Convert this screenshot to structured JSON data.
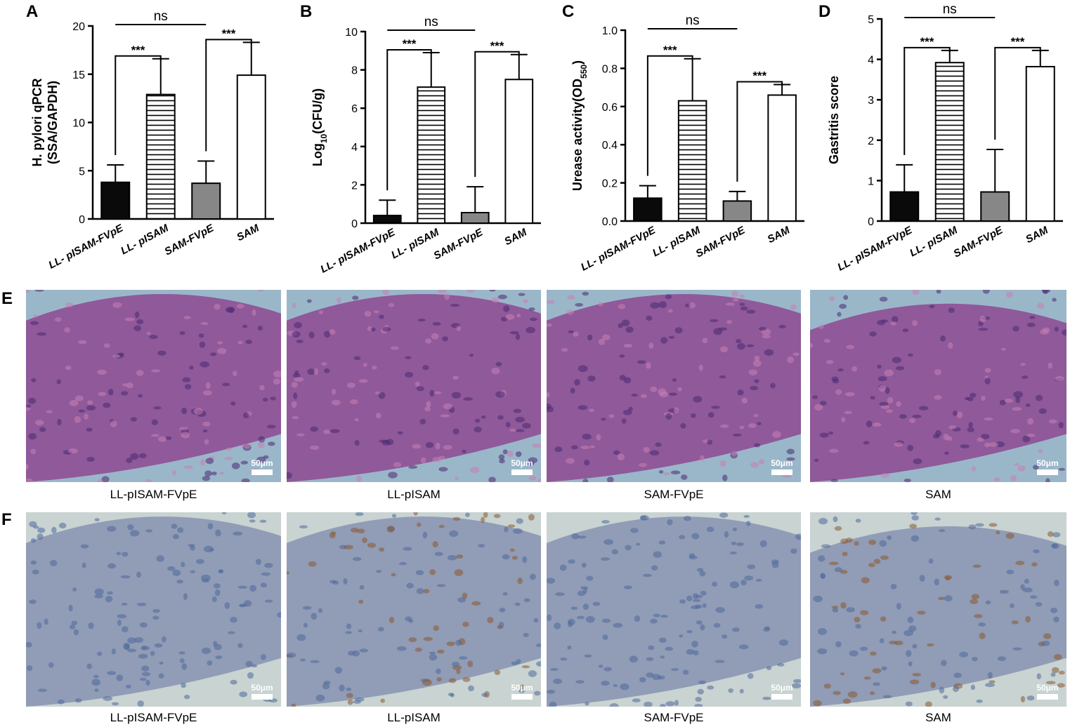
{
  "chart_data": [
    {
      "type": "bar",
      "panel": "A",
      "ylabel": [
        [
          "H. pylori qPCR"
        ],
        [
          "(SSA/GAPDH)"
        ]
      ],
      "categories": [
        "LL- pISAM-FVpE",
        "LL- pISAM",
        "SAM-FVpE",
        "SAM"
      ],
      "values": [
        3.8,
        12.9,
        3.7,
        14.9
      ],
      "errors": [
        1.8,
        3.7,
        2.3,
        3.4
      ],
      "fills": [
        "#0a0a0a",
        "stripes",
        "#878787",
        "#ffffff"
      ],
      "ylim": [
        0,
        20
      ],
      "yticks": [
        0,
        5,
        10,
        15,
        20
      ],
      "brackets": [
        {
          "bars": [
            0,
            2
          ],
          "label": "ns"
        },
        {
          "bars": [
            0,
            1
          ],
          "label": "***"
        },
        {
          "bars": [
            2,
            3
          ],
          "label": "***"
        }
      ]
    },
    {
      "type": "bar",
      "panel": "B",
      "ylabel": [
        [
          "Log",
          "10",
          "(CFU/g)"
        ]
      ],
      "categories": [
        "LL- pISAM-FVpE",
        "LL- pISAM",
        "SAM-FVpE",
        "SAM"
      ],
      "values": [
        0.4,
        7.1,
        0.55,
        7.5
      ],
      "errors": [
        0.8,
        1.8,
        1.35,
        1.3
      ],
      "fills": [
        "#0a0a0a",
        "stripes",
        "#878787",
        "#ffffff"
      ],
      "ylim": [
        0,
        10
      ],
      "yticks": [
        0,
        2,
        4,
        6,
        8,
        10
      ],
      "brackets": [
        {
          "bars": [
            0,
            2
          ],
          "label": "ns"
        },
        {
          "bars": [
            0,
            1
          ],
          "label": "***"
        },
        {
          "bars": [
            2,
            3
          ],
          "label": "***"
        }
      ]
    },
    {
      "type": "bar",
      "panel": "C",
      "ylabel": [
        [
          "Urease activity(OD",
          "550",
          ")"
        ]
      ],
      "categories": [
        "LL- pISAM-FVpE",
        "LL- pISAM",
        "SAM-FVpE",
        "SAM"
      ],
      "values": [
        0.12,
        0.63,
        0.105,
        0.66
      ],
      "errors": [
        0.065,
        0.22,
        0.05,
        0.055
      ],
      "fills": [
        "#0a0a0a",
        "stripes",
        "#878787",
        "#ffffff"
      ],
      "ylim": [
        0,
        1
      ],
      "yticks": [
        {
          "value": 0,
          "label": "0.0"
        },
        0.2,
        0.4,
        0.6,
        0.8,
        {
          "value": 1,
          "label": "1.0"
        }
      ],
      "brackets": [
        {
          "bars": [
            0,
            2
          ],
          "label": "ns"
        },
        {
          "bars": [
            0,
            1
          ],
          "label": "***"
        },
        {
          "bars": [
            2,
            3
          ],
          "label": "***"
        }
      ]
    },
    {
      "type": "bar",
      "panel": "D",
      "ylabel": [
        [
          "Gastritis score"
        ]
      ],
      "categories": [
        "LL- pISAM-FVpE",
        "LL- pISAM",
        "SAM-FVpE",
        "SAM"
      ],
      "values": [
        0.72,
        3.92,
        0.72,
        3.82
      ],
      "errors": [
        0.67,
        0.3,
        1.05,
        0.4
      ],
      "fills": [
        "#0a0a0a",
        "stripes",
        "#878787",
        "#ffffff"
      ],
      "ylim": [
        0,
        5
      ],
      "yticks": [
        0,
        1,
        2,
        3,
        4,
        5
      ],
      "brackets": [
        {
          "bars": [
            0,
            2
          ],
          "label": "ns"
        },
        {
          "bars": [
            0,
            1
          ],
          "label": "***"
        },
        {
          "bars": [
            2,
            3
          ],
          "label": "***"
        }
      ]
    }
  ],
  "histology": [
    {
      "panel": "E",
      "stain": "he",
      "images": [
        {
          "caption": "LL-pISAM-FVpE",
          "scale": "50μm"
        },
        {
          "caption": "LL-pISAM",
          "scale": "50μm"
        },
        {
          "caption": "SAM-FVpE",
          "scale": "50μm"
        },
        {
          "caption": "SAM",
          "scale": "50μm"
        }
      ]
    },
    {
      "panel": "F",
      "stain": "ihc",
      "images": [
        {
          "caption": "LL-pISAM-FVpE",
          "scale": "50μm"
        },
        {
          "caption": "LL-pISAM",
          "scale": "50μm"
        },
        {
          "caption": "SAM-FVpE",
          "scale": "50μm"
        },
        {
          "caption": "SAM",
          "scale": "50μm"
        }
      ]
    }
  ]
}
